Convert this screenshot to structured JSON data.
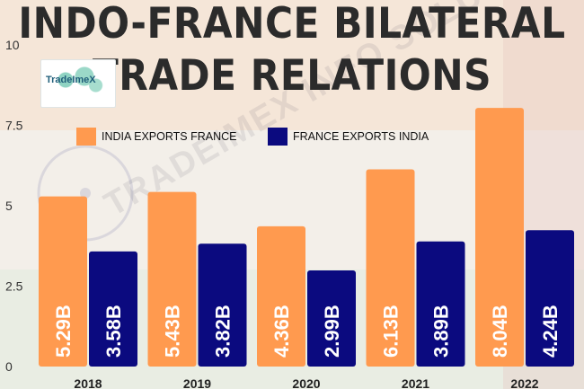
{
  "title_lines": [
    "INDO-FRANCE BILATERAL",
    "TRADE RELATIONS"
  ],
  "logo_text": "TradeImeX",
  "watermark_text": "TRADEIMEX INFO SOLUTION PVT. LTD.",
  "colors": {
    "india": "#ff9a4f",
    "france": "#0b0a7f",
    "title": "#2b2b2b",
    "bar_label": "#ffffff"
  },
  "chart_data": {
    "type": "bar",
    "categories": [
      "2018",
      "2019",
      "2020",
      "2021",
      "2022"
    ],
    "series": [
      {
        "name": "INDIA EXPORTS FRANCE",
        "values": [
          5.29,
          5.43,
          4.36,
          6.13,
          8.04
        ],
        "labels": [
          "5.29B",
          "5.43B",
          "4.36B",
          "6.13B",
          "8.04B"
        ]
      },
      {
        "name": "FRANCE EXPORTS INDIA",
        "values": [
          3.58,
          3.82,
          2.99,
          3.89,
          4.24
        ],
        "labels": [
          "3.58B",
          "3.82B",
          "2.99B",
          "3.89B",
          "4.24B"
        ]
      }
    ],
    "yticks": [
      "0",
      "2.5",
      "5",
      "7.5",
      "10"
    ],
    "ylim": [
      0,
      10
    ],
    "grid": false,
    "legend_position": "top"
  }
}
